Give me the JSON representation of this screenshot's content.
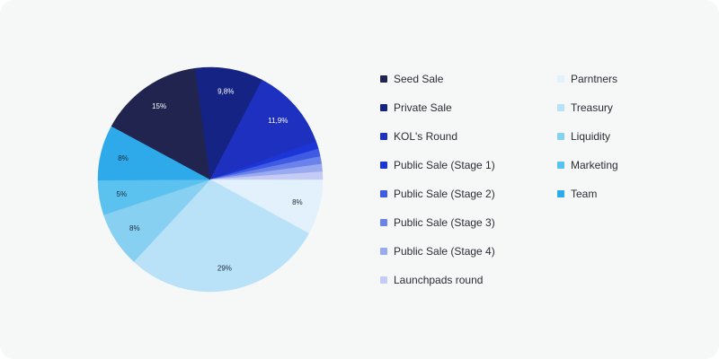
{
  "chart_data": {
    "type": "pie",
    "title": "",
    "slices": [
      {
        "label": "Parntners",
        "value": 8,
        "value_label": "8%",
        "color": "#e3f1fc"
      },
      {
        "label": "Treasury",
        "value": 29,
        "value_label": "29%",
        "color": "#b9e2f9"
      },
      {
        "label": "Liquidity",
        "value": 8,
        "value_label": "8%",
        "color": "#87d0f1"
      },
      {
        "label": "Marketing",
        "value": 5,
        "value_label": "5%",
        "color": "#5bc1ee"
      },
      {
        "label": "Team",
        "value": 8,
        "value_label": "8%",
        "color": "#2ea9e9"
      },
      {
        "label": "Seed Sale",
        "value": 15,
        "value_label": "15%",
        "color": "#21244f"
      },
      {
        "label": "Private Sale",
        "value": 9.8,
        "value_label": "9,8%",
        "color": "#142384"
      },
      {
        "label": "KOL's Round",
        "value": 11.9,
        "value_label": "11,9%",
        "color": "#1e30bf"
      },
      {
        "label": "Public Sale  (Stage 1)",
        "value": 1.1,
        "value_label": "",
        "color": "#1c35d6"
      },
      {
        "label": "Public Sale (Stage 2)",
        "value": 1.1,
        "value_label": "",
        "color": "#3f5ae3"
      },
      {
        "label": "Public Sale (Stage 3)",
        "value": 1.1,
        "value_label": "",
        "color": "#6a82ea"
      },
      {
        "label": "Public Sale (Stage 4)",
        "value": 1.1,
        "value_label": "",
        "color": "#9aaaf1"
      },
      {
        "label": "Launchpads round",
        "value": 1.1,
        "value_label": "",
        "color": "#c4cbf5"
      }
    ]
  },
  "legend": {
    "left": [
      {
        "label": "Seed Sale",
        "color": "#21244f"
      },
      {
        "label": "Private Sale",
        "color": "#142384"
      },
      {
        "label": "KOL's Round",
        "color": "#1e30bf"
      },
      {
        "label": "Public Sale  (Stage 1)",
        "color": "#1c35d6"
      },
      {
        "label": "Public Sale (Stage 2)",
        "color": "#3f5ae3"
      },
      {
        "label": "Public Sale (Stage 3)",
        "color": "#6a82ea"
      },
      {
        "label": "Public Sale (Stage 4)",
        "color": "#9aaaf1"
      },
      {
        "label": "Launchpads round",
        "color": "#c4cbf5"
      }
    ],
    "right": [
      {
        "label": "Parntners",
        "color": "#e3f1fc"
      },
      {
        "label": "Treasury",
        "color": "#b9e2f9"
      },
      {
        "label": "Liquidity",
        "color": "#87d0f1"
      },
      {
        "label": "Marketing",
        "color": "#5bc1ee"
      },
      {
        "label": "Team",
        "color": "#2ea9e9"
      }
    ]
  }
}
